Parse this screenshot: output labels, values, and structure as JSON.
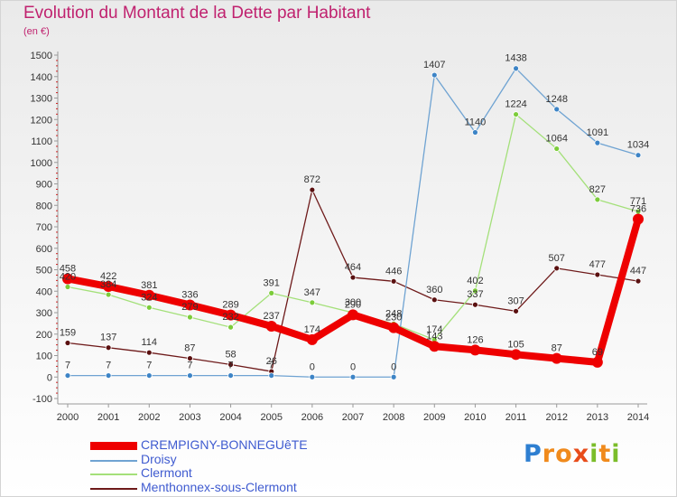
{
  "title": "Evolution du Montant de la Dette par Habitant",
  "subtitle": "(en €)",
  "brand": {
    "letters": [
      {
        "ch": "P",
        "color": "#2e7fd1"
      },
      {
        "ch": "r",
        "color": "#f08a1c"
      },
      {
        "ch": "o",
        "color": "#f08a1c"
      },
      {
        "ch": "x",
        "color": "#e84c1a"
      },
      {
        "ch": "i",
        "color": "#7bbd2a"
      },
      {
        "ch": "t",
        "color": "#f08a1c"
      },
      {
        "ch": "i",
        "color": "#7bbd2a"
      }
    ]
  },
  "chart_data": {
    "type": "line",
    "title": "Evolution du Montant de la Dette par Habitant",
    "ylabel": "(en €)",
    "xlabel": "",
    "x": [
      "2000",
      "2001",
      "2002",
      "2003",
      "2004",
      "2005",
      "2006",
      "2007",
      "2008",
      "2009",
      "2010",
      "2011",
      "2012",
      "2013",
      "2014"
    ],
    "ylim": [
      -100,
      1500
    ],
    "yticks": [
      -100,
      0,
      100,
      200,
      300,
      400,
      500,
      600,
      700,
      800,
      900,
      1000,
      1100,
      1200,
      1300,
      1400,
      1500
    ],
    "grid": false,
    "legend_position": "bottom-left",
    "series": [
      {
        "name": "Menthonnex-sous-Clermont",
        "color": "#6e1a1a",
        "marker": "#5a1010",
        "width": 1.3,
        "radius": 3,
        "values": [
          159,
          137,
          114,
          87,
          58,
          26,
          872,
          464,
          446,
          360,
          337,
          307,
          507,
          477,
          447
        ]
      },
      {
        "name": "Clermont",
        "color": "#a4e07a",
        "marker": "#7ccc3a",
        "width": 1.3,
        "radius": 3,
        "values": [
          420,
          384,
          324,
          279,
          232,
          391,
          347,
          300,
          248,
          174,
          402,
          1224,
          1064,
          827,
          771
        ]
      },
      {
        "name": "Droisy",
        "color": "#6fa3d2",
        "marker": "#3d84c6",
        "width": 1.3,
        "radius": 3,
        "values": [
          7,
          7,
          7,
          7,
          7,
          7,
          0,
          0,
          0,
          1407,
          1140,
          1438,
          1248,
          1091,
          1034
        ]
      },
      {
        "name": "CREMPIGNY-BONNEGUêTE",
        "color": "#ee0000",
        "marker": "#ee0000",
        "width": 8,
        "radius": 6,
        "values": [
          458,
          422,
          381,
          336,
          289,
          237,
          174,
          290,
          230,
          143,
          126,
          105,
          87,
          69,
          736
        ]
      }
    ]
  }
}
